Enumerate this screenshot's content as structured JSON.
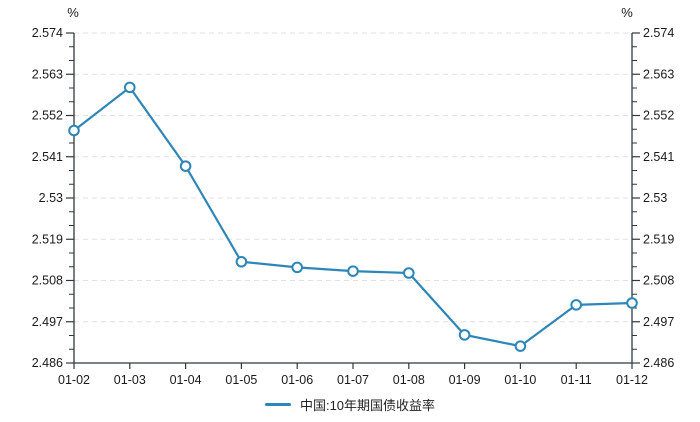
{
  "chart_data": {
    "type": "line",
    "title": "",
    "unit": "%",
    "categories": [
      "01-02",
      "01-03",
      "01-04",
      "01-05",
      "01-06",
      "01-07",
      "01-08",
      "01-09",
      "01-10",
      "01-11",
      "01-12"
    ],
    "series": [
      {
        "name": "中国:10年期国债收益率",
        "values": [
          2.548,
          2.5595,
          2.5385,
          2.513,
          2.5115,
          2.5105,
          2.51,
          2.4935,
          2.4905,
          2.5015,
          2.502
        ]
      }
    ],
    "y_ticks": [
      "2.574",
      "2.563",
      "2.552",
      "2.541",
      "2.53",
      "2.519",
      "2.508",
      "2.497",
      "2.486"
    ],
    "ylim": [
      2.486,
      2.574
    ],
    "minor_ticks_per_interval": 2,
    "grid": "horizontal-dashed",
    "legend_position": "bottom-center",
    "marker": "open-circle",
    "colors": {
      "accent": "#2e86b8",
      "grid": "#e1e1e1",
      "axis": "#2f383e",
      "text": "#1a1a1a"
    }
  }
}
